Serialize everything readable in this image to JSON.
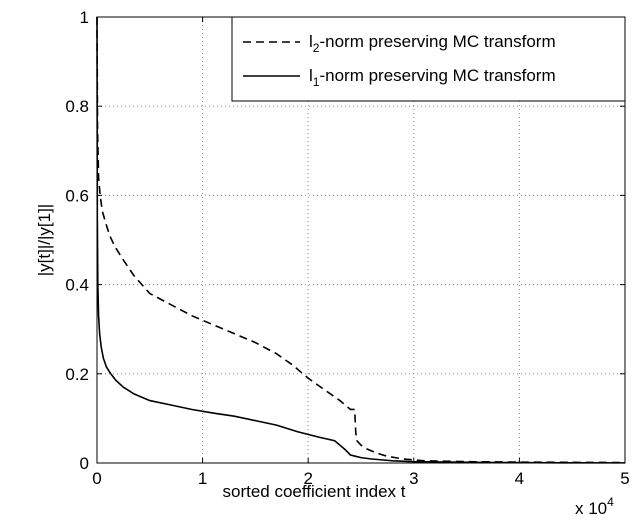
{
  "chart_data": {
    "type": "line",
    "xlabel": "sorted coefficient index t",
    "ylabel": "|y[t]|/|y[1]|",
    "x_exponent_label": "x 10",
    "x_exponent_power": "4",
    "xlim": [
      0,
      50000
    ],
    "ylim": [
      0,
      1
    ],
    "xticks": [
      0,
      10000,
      20000,
      30000,
      40000,
      50000
    ],
    "xtick_labels": [
      "0",
      "1",
      "2",
      "3",
      "4",
      "5"
    ],
    "yticks": [
      0,
      0.2,
      0.4,
      0.6,
      0.8,
      1
    ],
    "ytick_labels": [
      "0",
      "0.2",
      "0.4",
      "0.6",
      "0.8",
      "1"
    ],
    "grid": true,
    "legend_position": "top-right",
    "series": [
      {
        "name": "l2-norm preserving MC transform",
        "legend_base": "l",
        "legend_sub": "2",
        "legend_rest": "-norm preserving MC transform",
        "style": "dashed",
        "x": [
          0,
          50,
          150,
          300,
          500,
          800,
          1200,
          1700,
          2500,
          3500,
          5000,
          7000,
          9000,
          11000,
          13000,
          15000,
          17000,
          18500,
          20000,
          21500,
          23000,
          24000,
          24400,
          24500,
          24600,
          25000,
          25500,
          26500,
          27500,
          29000,
          31000,
          35000,
          40000,
          45000,
          50000
        ],
        "y": [
          1.0,
          0.75,
          0.64,
          0.6,
          0.565,
          0.54,
          0.51,
          0.485,
          0.455,
          0.42,
          0.38,
          0.355,
          0.33,
          0.31,
          0.29,
          0.27,
          0.245,
          0.22,
          0.19,
          0.165,
          0.14,
          0.12,
          0.12,
          0.07,
          0.05,
          0.04,
          0.032,
          0.022,
          0.015,
          0.009,
          0.005,
          0.003,
          0.002,
          0.0015,
          0.001
        ]
      },
      {
        "name": "l1-norm preserving MC transform",
        "legend_base": "l",
        "legend_sub": "1",
        "legend_rest": "-norm preserving MC transform",
        "style": "solid",
        "x": [
          0,
          30,
          80,
          150,
          250,
          400,
          600,
          900,
          1300,
          1800,
          2500,
          3500,
          5000,
          7000,
          9000,
          11000,
          13000,
          15000,
          17000,
          19000,
          21000,
          22500,
          23000,
          23500,
          24000,
          24500,
          25000,
          26000,
          27000,
          28000,
          30000,
          33000,
          38000,
          44000,
          50000
        ],
        "y": [
          1.0,
          0.55,
          0.4,
          0.33,
          0.29,
          0.26,
          0.235,
          0.215,
          0.2,
          0.185,
          0.17,
          0.155,
          0.14,
          0.13,
          0.12,
          0.112,
          0.105,
          0.095,
          0.085,
          0.07,
          0.058,
          0.05,
          0.04,
          0.03,
          0.018,
          0.015,
          0.012,
          0.009,
          0.007,
          0.005,
          0.003,
          0.002,
          0.001,
          0.0005,
          0.0003
        ]
      }
    ]
  }
}
